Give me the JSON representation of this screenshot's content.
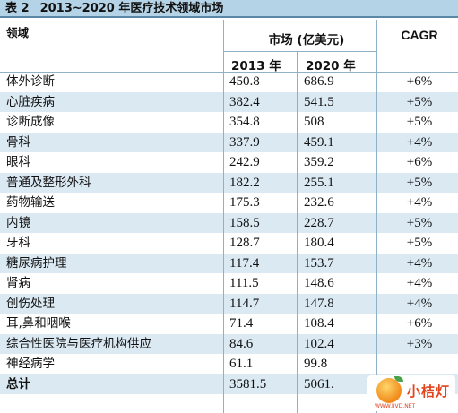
{
  "title": {
    "label": "表 2",
    "text": "2013~2020 年医疗技术领域市场"
  },
  "header": {
    "field": "领域",
    "market": "市场 (亿美元)",
    "cagr": "CAGR",
    "year1": "2013 年",
    "year2": "2020 年"
  },
  "rows": [
    {
      "field": "体外诊断",
      "y2013": "450.8",
      "y2020": "686.9",
      "cagr": "+6%"
    },
    {
      "field": "心脏疾病",
      "y2013": "382.4",
      "y2020": "541.5",
      "cagr": "+5%"
    },
    {
      "field": "诊断成像",
      "y2013": "354.8",
      "y2020": "508",
      "cagr": "+5%"
    },
    {
      "field": "骨科",
      "y2013": "337.9",
      "y2020": "459.1",
      "cagr": "+4%"
    },
    {
      "field": "眼科",
      "y2013": "242.9",
      "y2020": "359.2",
      "cagr": "+6%"
    },
    {
      "field": "普通及整形外科",
      "y2013": "182.2",
      "y2020": "255.1",
      "cagr": "+5%"
    },
    {
      "field": "药物输送",
      "y2013": "175.3",
      "y2020": "232.6",
      "cagr": "+4%"
    },
    {
      "field": "内镜",
      "y2013": "158.5",
      "y2020": "228.7",
      "cagr": "+5%"
    },
    {
      "field": "牙科",
      "y2013": "128.7",
      "y2020": "180.4",
      "cagr": "+5%"
    },
    {
      "field": "糖尿病护理",
      "y2013": "117.4",
      "y2020": "153.7",
      "cagr": "+4%"
    },
    {
      "field": "肾病",
      "y2013": "111.5",
      "y2020": "148.6",
      "cagr": "+4%"
    },
    {
      "field": "创伤处理",
      "y2013": "114.7",
      "y2020": "147.8",
      "cagr": "+4%"
    },
    {
      "field": "耳,鼻和咽喉",
      "y2013": "71.4",
      "y2020": "108.4",
      "cagr": "+6%"
    },
    {
      "field": "综合性医院与医疗机构供应",
      "y2013": "84.6",
      "y2020": "102.4",
      "cagr": "+3%"
    },
    {
      "field": "神经病学",
      "y2013": "61.1",
      "y2020": "99.8",
      "cagr": ""
    },
    {
      "field": "总计",
      "y2013": "3581.5",
      "y2020": "5061.",
      "cagr": ""
    }
  ],
  "logo": {
    "text": "小桔灯",
    "url": "WWW.IIVD.NET"
  }
}
